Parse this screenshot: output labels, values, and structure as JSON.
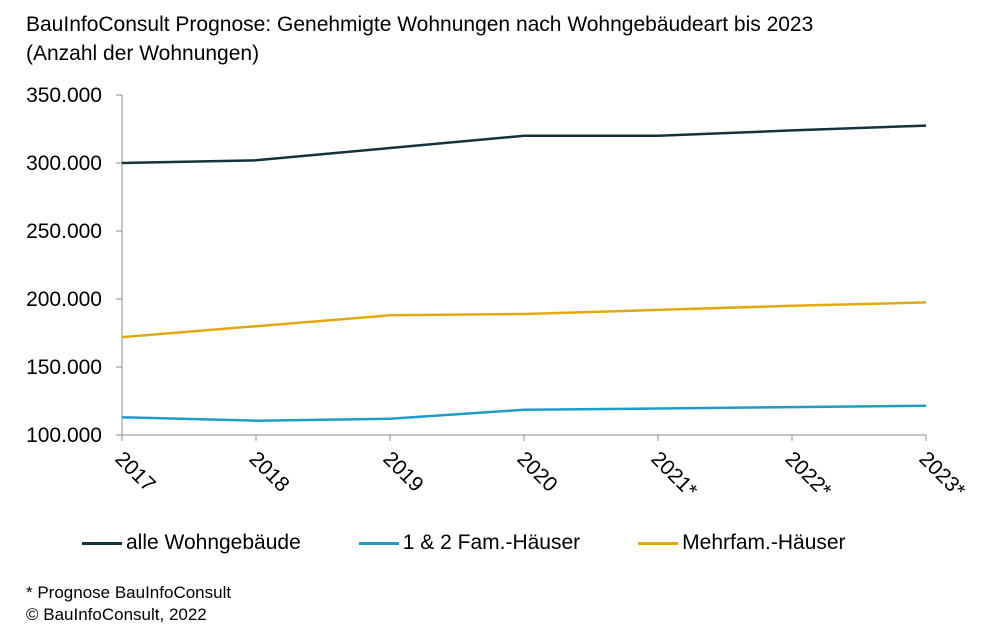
{
  "header": {
    "title_line1": "BauInfoConsult Prognose: Genehmigte Wohnungen nach Wohngebäudeart bis 2023",
    "title_line2": "(Anzahl der Wohnungen)"
  },
  "footnotes": {
    "note": "* Prognose BauInfoConsult",
    "copyright": "© BauInfoConsult, 2022"
  },
  "chart_data": {
    "type": "line",
    "title": "BauInfoConsult Prognose: Genehmigte Wohnungen nach Wohngebäudeart bis 2023",
    "subtitle": "(Anzahl der Wohnungen)",
    "categories": [
      "2017",
      "2018",
      "2019",
      "2020",
      "2021*",
      "2022*",
      "2023*"
    ],
    "y_ticks": [
      "100.000",
      "150.000",
      "200.000",
      "250.000",
      "300.000",
      "350.000"
    ],
    "ylim": [
      100000,
      350000
    ],
    "grid": false,
    "legend_position": "bottom",
    "series": [
      {
        "name": "alle Wohngebäude",
        "color": "#15323e",
        "values": [
          300000,
          302000,
          311000,
          320000,
          320000,
          324000,
          327500
        ]
      },
      {
        "name": "1 & 2 Fam.-Häuser",
        "color": "#1c9cc7",
        "values": [
          113000,
          110500,
          112000,
          118500,
          119500,
          120500,
          121500
        ]
      },
      {
        "name": "Mehrfam.-Häuser",
        "color": "#e2a90f",
        "values": [
          172000,
          180000,
          188000,
          189000,
          192000,
          195000,
          197500
        ]
      }
    ]
  }
}
